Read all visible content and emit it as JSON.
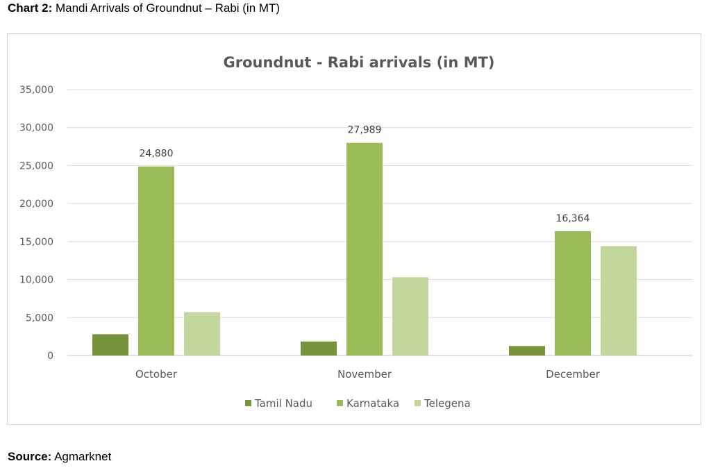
{
  "caption": {
    "label": "Chart 2:",
    "text": "Mandi Arrivals of Groundnut – Rabi (in MT)"
  },
  "source": {
    "label": "Source:",
    "text": "Agmarknet"
  },
  "chart_data": {
    "type": "bar",
    "title": "Groundnut - Rabi arrivals (in MT)",
    "xlabel": "",
    "ylabel": "",
    "categories": [
      "October",
      "November",
      "December"
    ],
    "ylim": [
      0,
      35000
    ],
    "yticks": [
      0,
      5000,
      10000,
      15000,
      20000,
      25000,
      30000,
      35000
    ],
    "ytick_labels": [
      "0",
      "5,000",
      "10,000",
      "15,000",
      "20,000",
      "25,000",
      "30,000",
      "35,000"
    ],
    "grid": true,
    "legend_position": "bottom",
    "series": [
      {
        "name": "Tamil Nadu",
        "color": "#77933c",
        "values": [
          2800,
          1850,
          1250
        ],
        "data_labels": [
          null,
          null,
          null
        ]
      },
      {
        "name": "Karnataka",
        "color": "#9bbb59",
        "values": [
          24880,
          27989,
          16364
        ],
        "data_labels": [
          "24,880",
          "27,989",
          "16,364"
        ]
      },
      {
        "name": "Telegena",
        "color": "#c3d69b",
        "values": [
          5700,
          10300,
          14400
        ],
        "data_labels": [
          null,
          null,
          null
        ]
      }
    ]
  }
}
